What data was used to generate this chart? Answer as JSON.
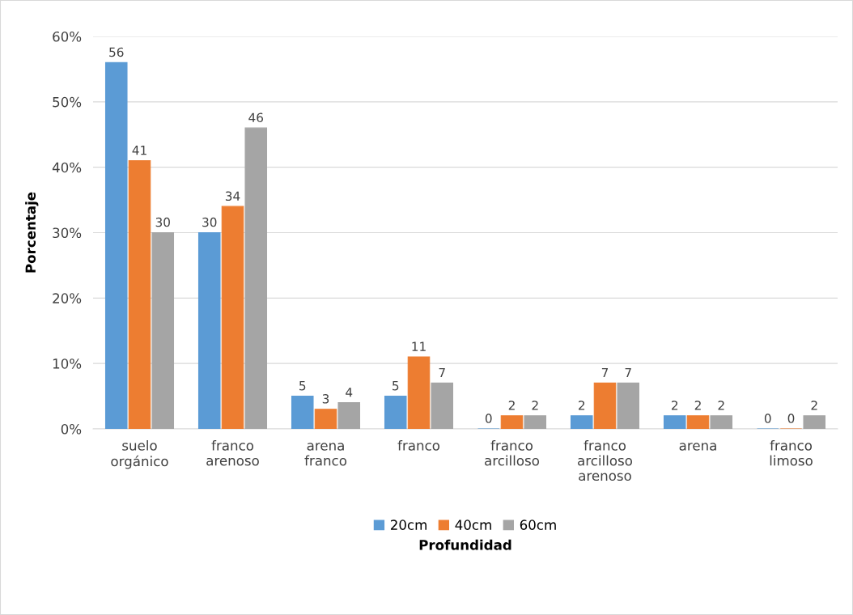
{
  "chart_data": {
    "type": "bar",
    "xlabel": "Profundidad",
    "ylabel": "Porcentaje",
    "categories": [
      "suelo orgánico",
      "franco arenoso",
      "arena franco",
      "franco",
      "franco arcilloso",
      "franco arcilloso arenoso",
      "arena",
      "franco limoso"
    ],
    "series": [
      {
        "name": "20cm",
        "color": "#5b9bd5",
        "values": [
          56,
          30,
          5,
          5,
          0,
          2,
          2,
          0
        ]
      },
      {
        "name": "40cm",
        "color": "#ed7d31",
        "values": [
          41,
          34,
          3,
          11,
          2,
          7,
          2,
          0
        ]
      },
      {
        "name": "60cm",
        "color": "#a5a5a5",
        "values": [
          30,
          46,
          4,
          7,
          2,
          7,
          2,
          2
        ]
      }
    ],
    "ylim": [
      0,
      60
    ],
    "yticks": [
      {
        "value": 0,
        "label": "0%"
      },
      {
        "value": 10,
        "label": "10%"
      },
      {
        "value": 20,
        "label": "20%"
      },
      {
        "value": 30,
        "label": "30%"
      },
      {
        "value": 40,
        "label": "40%"
      },
      {
        "value": 50,
        "label": "50%"
      },
      {
        "value": 60,
        "label": "60%"
      }
    ],
    "grid": "y",
    "legend": "bottom",
    "data_labels": true
  }
}
